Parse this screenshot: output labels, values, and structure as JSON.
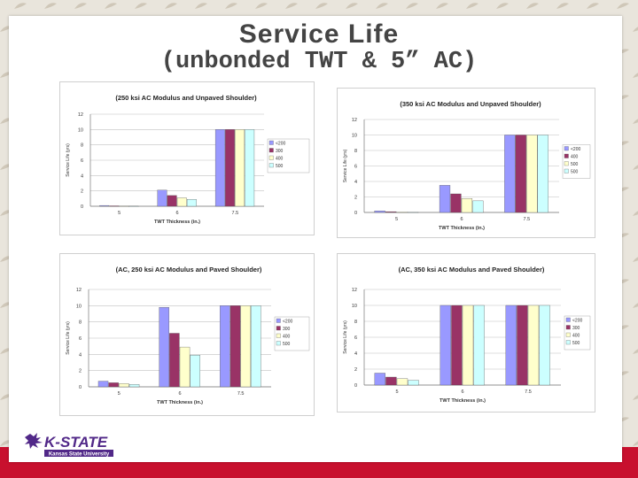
{
  "slide": {
    "title": "Service Life",
    "subtitle": "(unbonded TWT & 5” AC)"
  },
  "logo": {
    "wordmark": "K-STATE",
    "tagline": "Kansas State University"
  },
  "colors": {
    "series": [
      "#9999ff",
      "#993366",
      "#ffffcc",
      "#ccffff"
    ],
    "grid": "#c0c0c0",
    "accent_red": "#c8102e",
    "logo_purple": "#512888"
  },
  "chart_data": [
    {
      "type": "bar",
      "title": "(250 ksi AC Modulus and Unpaved Shoulder)",
      "xlabel": "TWT Thickness (in.)",
      "ylabel": "Service Life (yrs)",
      "categories": [
        "5",
        "6",
        "7.5"
      ],
      "ylim": [
        0,
        12
      ],
      "yticks": [
        0,
        2,
        4,
        6,
        8,
        10,
        12
      ],
      "legend": "right",
      "series": [
        {
          "name": "<200",
          "values": [
            0.1,
            2.1,
            10
          ]
        },
        {
          "name": "300",
          "values": [
            0.05,
            1.4,
            10
          ]
        },
        {
          "name": "400",
          "values": [
            0.03,
            1.1,
            10
          ]
        },
        {
          "name": "500",
          "values": [
            0.02,
            0.9,
            10
          ]
        }
      ]
    },
    {
      "type": "bar",
      "title": "(350 ksi AC Modulus and Unpaved Shoulder)",
      "xlabel": "TWT Thickness (in.)",
      "ylabel": "Service Life (yrs)",
      "categories": [
        "5",
        "6",
        "7.5"
      ],
      "ylim": [
        0,
        12
      ],
      "yticks": [
        0,
        2,
        4,
        6,
        8,
        10,
        12
      ],
      "legend": "right",
      "series": [
        {
          "name": "<200",
          "values": [
            0.2,
            3.5,
            10
          ]
        },
        {
          "name": "400",
          "values": [
            0.1,
            2.4,
            10
          ]
        },
        {
          "name": "500",
          "values": [
            0.05,
            1.8,
            10
          ]
        },
        {
          "name": "500",
          "values": [
            0.03,
            1.5,
            10
          ]
        }
      ]
    },
    {
      "type": "bar",
      "title": "(AC, 250 ksi AC Modulus and Paved Shoulder)",
      "xlabel": "TWT Thickness (in.)",
      "ylabel": "Service Life (yrs)",
      "categories": [
        "5",
        "6",
        "7.5"
      ],
      "ylim": [
        0,
        12
      ],
      "yticks": [
        0,
        2,
        4,
        6,
        8,
        10,
        12
      ],
      "legend": "right",
      "series": [
        {
          "name": "<200",
          "values": [
            0.7,
            9.8,
            10
          ]
        },
        {
          "name": "300",
          "values": [
            0.5,
            6.6,
            10
          ]
        },
        {
          "name": "400",
          "values": [
            0.4,
            4.9,
            10
          ]
        },
        {
          "name": "500",
          "values": [
            0.3,
            3.9,
            10
          ]
        }
      ]
    },
    {
      "type": "bar",
      "title": "(AC, 350 ksi AC Modulus and Paved Shoulder)",
      "xlabel": "TWT Thickness (in.)",
      "ylabel": "Service Life (yrs)",
      "categories": [
        "5",
        "6",
        "7.5"
      ],
      "ylim": [
        0,
        12
      ],
      "yticks": [
        0,
        2,
        4,
        6,
        8,
        10,
        12
      ],
      "legend": "right",
      "series": [
        {
          "name": "<200",
          "values": [
            1.5,
            10,
            10
          ]
        },
        {
          "name": "300",
          "values": [
            1.0,
            10,
            10
          ]
        },
        {
          "name": "400",
          "values": [
            0.8,
            10,
            10
          ]
        },
        {
          "name": "500",
          "values": [
            0.6,
            10,
            10
          ]
        }
      ]
    }
  ]
}
